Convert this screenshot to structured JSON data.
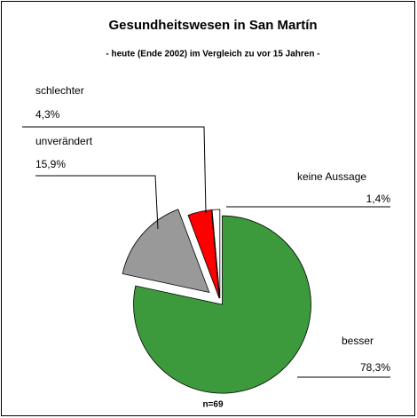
{
  "chart_data": {
    "type": "pie",
    "title": "Gesundheitswesen in San Martín",
    "subtitle": "- heute (Ende 2002) im Vergleich zu vor 15 Jahren -",
    "annotation": "n=69",
    "categories": [
      "besser",
      "unverändert",
      "schlechter",
      "keine Aussage"
    ],
    "values": [
      78.3,
      15.9,
      4.3,
      1.4
    ],
    "value_labels": [
      "78,3%",
      "15,9%",
      "4,3%",
      "1,4%"
    ],
    "colors": [
      "#3c9a3c",
      "#999999",
      "#ff0000",
      "#ffffff"
    ],
    "exploded": [
      "unverändert"
    ]
  }
}
